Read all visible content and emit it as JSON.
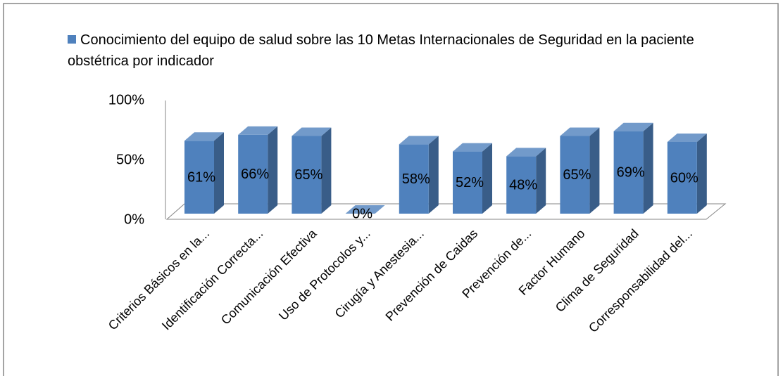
{
  "chart_data": {
    "type": "bar3d",
    "categories": [
      "Criterios Básicos en la...",
      "Identificación Correcta...",
      "Comunicación Efectiva",
      "Uso de Protocolos y...",
      "Cirugía y Anestesia...",
      "Prevención de Caidas",
      "Prevención de...",
      "Factor Humano",
      "Clima de Seguridad",
      "Corresponsabilidad del..."
    ],
    "series": [
      {
        "name": "Conocimiento del equipo de salud sobre las 10 Metas Internacionales de Seguridad en la paciente obstétrica por indicador",
        "color": "#4f81bd",
        "values": [
          61,
          66,
          65,
          0,
          58,
          52,
          48,
          65,
          69,
          60
        ],
        "value_labels": [
          "61%",
          "66%",
          "65%",
          "0%",
          "58%",
          "52%",
          "48%",
          "65%",
          "69%",
          "60%"
        ]
      }
    ],
    "ylim": [
      0,
      100
    ],
    "yticks": [
      {
        "value": 0,
        "label": "0%"
      },
      {
        "value": 50,
        "label": "50%"
      },
      {
        "value": 100,
        "label": "100%"
      }
    ],
    "legend": "top"
  }
}
